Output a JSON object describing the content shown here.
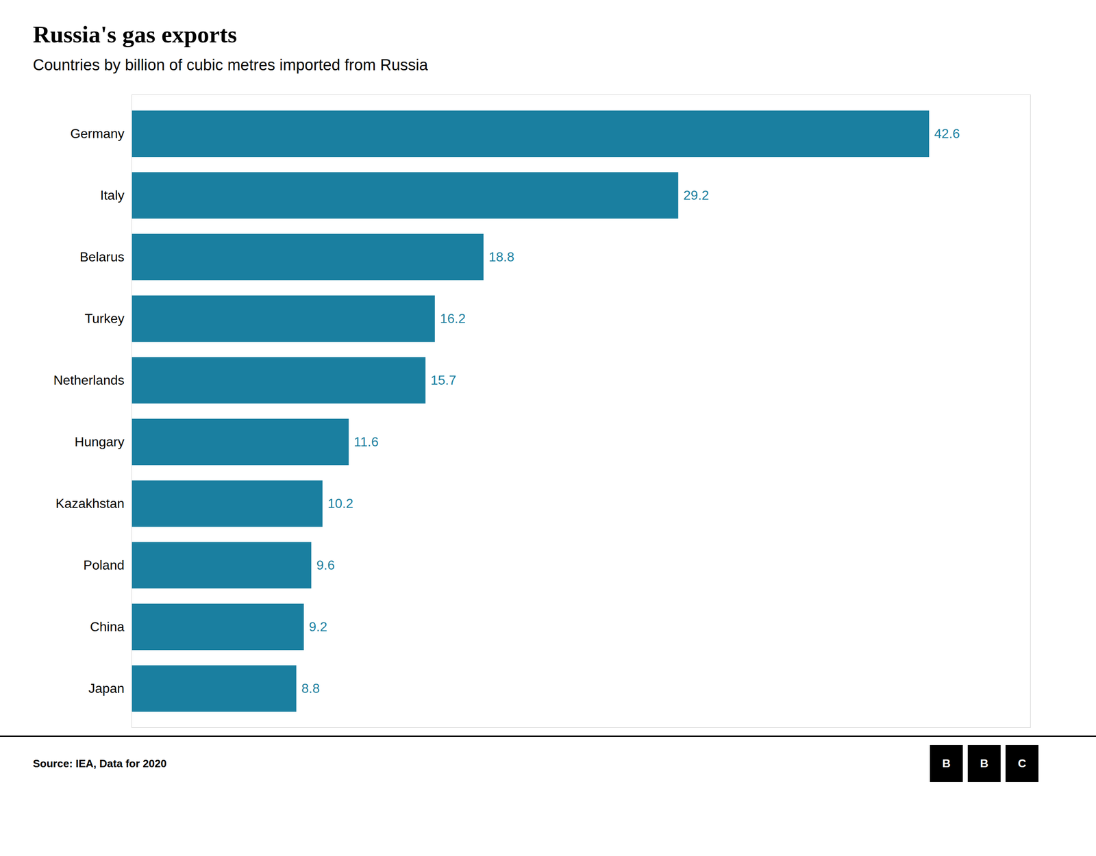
{
  "chart_data": {
    "type": "bar",
    "orientation": "horizontal",
    "title": "Russia's gas exports",
    "subtitle": "Countries by billion of cubic metres imported from Russia",
    "source": "Source: IEA, Data for 2020",
    "logo": "BBC",
    "categories": [
      "Germany",
      "Italy",
      "Belarus",
      "Turkey",
      "Netherlands",
      "Hungary",
      "Kazakhstan",
      "Poland",
      "China",
      "Japan"
    ],
    "values": [
      42.6,
      29.2,
      18.8,
      16.2,
      15.7,
      11.6,
      10.2,
      9.6,
      9.2,
      8.8
    ],
    "color": "#1a7fa0",
    "xlim": [
      0,
      48
    ],
    "grid": false,
    "data_labels": true,
    "tick_labels": "y"
  }
}
